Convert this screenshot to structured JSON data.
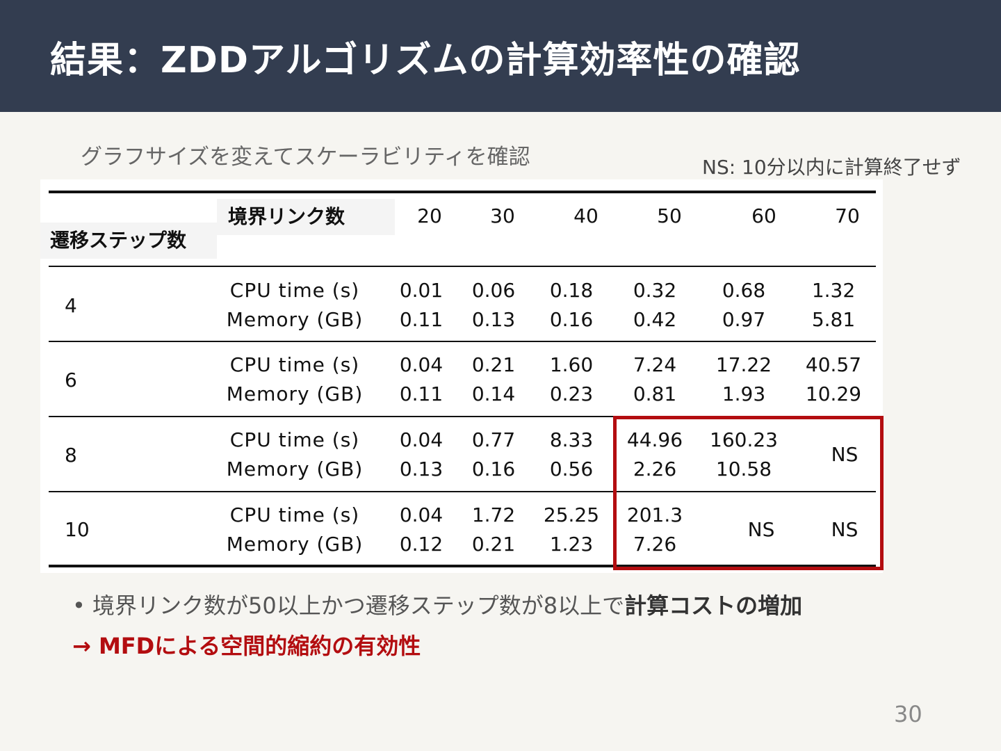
{
  "slide": {
    "title": "結果：ZDDアルゴリズムの計算効率性の確認",
    "subtitle": "グラフサイズを変えてスケーラビリティを確認",
    "ns_note": "NS: 10分以内に計算終了せず",
    "page_number": "30"
  },
  "table": {
    "col_header_label": "境界リンク数",
    "row_header_label": "遷移ステップ数",
    "columns": [
      "20",
      "30",
      "40",
      "50",
      "60",
      "70"
    ],
    "metric_labels": [
      "CPU time (s)",
      "Memory (GB)"
    ],
    "rows": [
      {
        "steps": "4",
        "cpu": [
          "0.01",
          "0.06",
          "0.18",
          "0.32",
          "0.68",
          "1.32"
        ],
        "mem": [
          "0.11",
          "0.13",
          "0.16",
          "0.42",
          "0.97",
          "5.81"
        ]
      },
      {
        "steps": "6",
        "cpu": [
          "0.04",
          "0.21",
          "1.60",
          "7.24",
          "17.22",
          "40.57"
        ],
        "mem": [
          "0.11",
          "0.14",
          "0.23",
          "0.81",
          "1.93",
          "10.29"
        ]
      },
      {
        "steps": "8",
        "cpu": [
          "0.04",
          "0.77",
          "8.33",
          "44.96",
          "160.23",
          "NS"
        ],
        "mem": [
          "0.13",
          "0.16",
          "0.56",
          "2.26",
          "10.58",
          ""
        ]
      },
      {
        "steps": "10",
        "cpu": [
          "0.04",
          "1.72",
          "25.25",
          "201.3",
          "NS",
          "NS"
        ],
        "mem": [
          "0.12",
          "0.21",
          "1.23",
          "7.26",
          "",
          ""
        ]
      }
    ],
    "highlight_color": "#b30d10"
  },
  "bullets": {
    "line1_plain": "境界リンク数が50以上かつ遷移ステップ数が8以上で",
    "line1_bold": "計算コストの増加",
    "line2": "→ MFDによる空間的縮約の有効性"
  }
}
